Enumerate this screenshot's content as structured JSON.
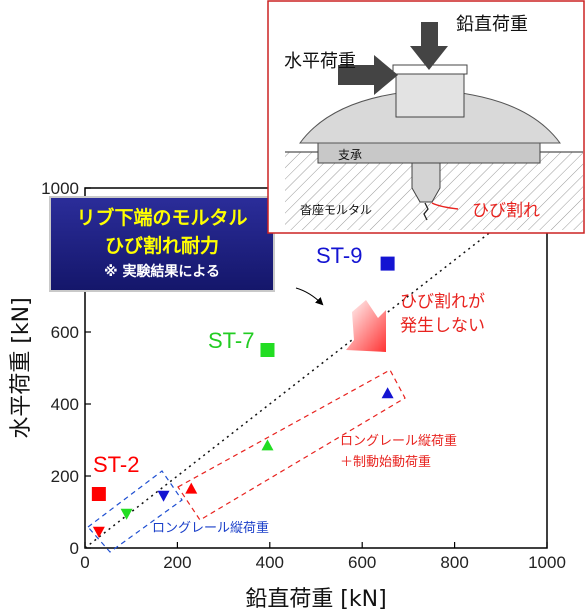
{
  "chart_data": {
    "type": "scatter",
    "xlabel": "鉛直荷重 [kN]",
    "ylabel": "水平荷重 [kN]",
    "xlim": [
      0,
      1000
    ],
    "ylim": [
      0,
      1000
    ],
    "xticks": [
      "0",
      "200",
      "400",
      "600",
      "800",
      "1000"
    ],
    "yticks": [
      "0",
      "200",
      "400",
      "600",
      "800",
      "1000"
    ],
    "series": [
      {
        "name": "ST-2",
        "color": "#ff0000",
        "marker": "square",
        "points": [
          [
            30,
            150
          ]
        ]
      },
      {
        "name": "ST-7",
        "color": "#22dd22",
        "marker": "square",
        "points": [
          [
            395,
            550
          ]
        ]
      },
      {
        "name": "ST-9",
        "color": "#1414d2",
        "marker": "square",
        "points": [
          [
            655,
            790
          ]
        ]
      },
      {
        "name": "",
        "color": "#ff0000",
        "marker": "triangle-down",
        "points": [
          [
            30,
            45
          ]
        ]
      },
      {
        "name": "",
        "color": "#22dd22",
        "marker": "triangle-down",
        "points": [
          [
            90,
            95
          ]
        ]
      },
      {
        "name": "",
        "color": "#1414d2",
        "marker": "triangle-down",
        "points": [
          [
            170,
            145
          ]
        ]
      },
      {
        "name": "",
        "color": "#ff0000",
        "marker": "triangle-up",
        "points": [
          [
            230,
            165
          ]
        ]
      },
      {
        "name": "",
        "color": "#22dd22",
        "marker": "triangle-up",
        "points": [
          [
            395,
            285
          ]
        ]
      },
      {
        "name": "",
        "color": "#1414d2",
        "marker": "triangle-up",
        "points": [
          [
            655,
            430
          ]
        ]
      }
    ],
    "trend_line": {
      "style": "dotted",
      "from": [
        0,
        0
      ],
      "to": [
        1000,
        1000
      ]
    },
    "annotations": {
      "capacity_box_title_1": "リブ下端のモルタル",
      "capacity_box_title_2": "ひび割れ耐力",
      "capacity_box_note": "※ 実験結果による",
      "no_crack_1": "ひび割れが",
      "no_crack_2": "発生しない",
      "group_long_rail_label": "ロングレール縦荷重",
      "group_brake_label_1": "ロングレール縦荷重",
      "group_brake_label_2": "＋制動始動荷重"
    },
    "inset": {
      "vertical_load": "鉛直荷重",
      "horizontal_load": "水平荷重",
      "bearing": "支承",
      "mortar": "沓座モルタル",
      "crack": "ひび割れ"
    },
    "grid": false,
    "legend": "none"
  }
}
